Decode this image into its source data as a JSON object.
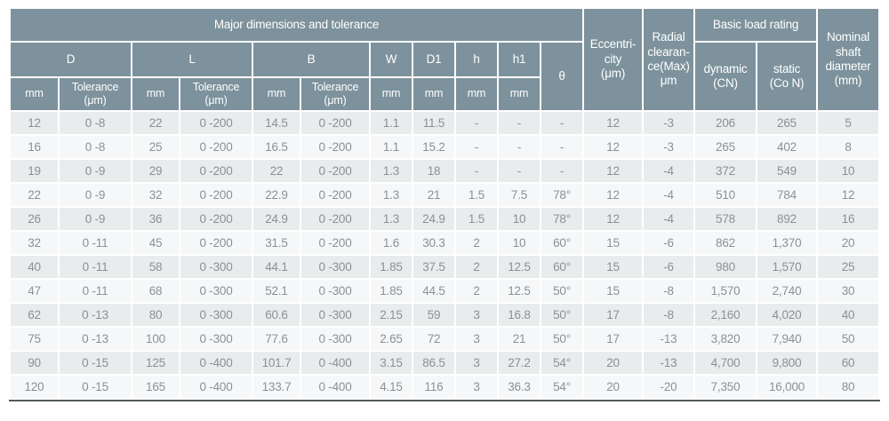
{
  "table": {
    "title_group": "Major  dimensions and tolerance",
    "header": {
      "d_group": "D",
      "l_group": "L",
      "b_group": "B",
      "w_col": "W",
      "d1_col": "D1",
      "h_col": "h",
      "h1_col": "h1",
      "theta_col": "θ",
      "mm_unit": "mm",
      "tolerance_unit": "Tolerance\n(μm)",
      "eccentricity": "Eccentri-\ncity\n(μm)",
      "radial_clearance": "Radial\nclearan-\nce(Max)\nμm",
      "basic_load_rating": "Basic load rating",
      "dynamic_col": "dynamic\n(CN)",
      "static_col": "static\n(Co N)",
      "nominal_shaft": "Nominal\nshaft\ndiameter\n(mm)"
    },
    "columns_order": [
      "D mm",
      "D Tolerance (μm)",
      "L mm",
      "L Tolerance (μm)",
      "B mm",
      "B Tolerance (μm)",
      "W mm",
      "D1 mm",
      "h mm",
      "h1 mm",
      "θ",
      "Eccentricity (μm)",
      "Radial clearance (Max) μm",
      "dynamic (CN)",
      "static (Co N)",
      "Nominal shaft diameter (mm)"
    ],
    "rows": [
      [
        "12",
        "0 -8",
        "22",
        "0 -200",
        "14.5",
        "0 -200",
        "1.1",
        "11.5",
        "-",
        "-",
        "-",
        "12",
        "-3",
        "206",
        "265",
        "5"
      ],
      [
        "16",
        "0 -8",
        "25",
        "0 -200",
        "16.5",
        "0 -200",
        "1.1",
        "15.2",
        "-",
        "-",
        "-",
        "12",
        "-3",
        "265",
        "402",
        "8"
      ],
      [
        "19",
        "0 -9",
        "29",
        "0 -200",
        "22",
        "0 -200",
        "1.3",
        "18",
        "-",
        "-",
        "-",
        "12",
        "-4",
        "372",
        "549",
        "10"
      ],
      [
        "22",
        "0 -9",
        "32",
        "0 -200",
        "22.9",
        "0 -200",
        "1.3",
        "21",
        "1.5",
        "7.5",
        "78°",
        "12",
        "-4",
        "510",
        "784",
        "12"
      ],
      [
        "26",
        "0 -9",
        "36",
        "0 -200",
        "24.9",
        "0 -200",
        "1.3",
        "24.9",
        "1.5",
        "10",
        "78°",
        "12",
        "-4",
        "578",
        "892",
        "16"
      ],
      [
        "32",
        "0 -11",
        "45",
        "0 -200",
        "31.5",
        "0 -200",
        "1.6",
        "30.3",
        "2",
        "10",
        "60°",
        "15",
        "-6",
        "862",
        "1,370",
        "20"
      ],
      [
        "40",
        "0 -11",
        "58",
        "0 -300",
        "44.1",
        "0 -300",
        "1.85",
        "37.5",
        "2",
        "12.5",
        "60°",
        "15",
        "-6",
        "980",
        "1,570",
        "25"
      ],
      [
        "47",
        "0 -11",
        "68",
        "0 -300",
        "52.1",
        "0 -300",
        "1.85",
        "44.5",
        "2",
        "12.5",
        "50°",
        "15",
        "-8",
        "1,570",
        "2,740",
        "30"
      ],
      [
        "62",
        "0 -13",
        "80",
        "0 -300",
        "60.6",
        "0 -300",
        "2.15",
        "59",
        "3",
        "16.8",
        "50°",
        "17",
        "-8",
        "2,160",
        "4,020",
        "40"
      ],
      [
        "75",
        "0 -13",
        "100",
        "0 -300",
        "77.6",
        "0 -300",
        "2.65",
        "72",
        "3",
        "21",
        "50°",
        "17",
        "-13",
        "3,820",
        "7,940",
        "50"
      ],
      [
        "90",
        "0 -15",
        "125",
        "0 -400",
        "101.7",
        "0 -400",
        "3.15",
        "86.5",
        "3",
        "27.2",
        "54°",
        "20",
        "-13",
        "4,700",
        "9,800",
        "60"
      ],
      [
        "120",
        "0 -15",
        "165",
        "0 -400",
        "133.7",
        "0 -400",
        "4.15",
        "116",
        "3",
        "36.3",
        "54°",
        "20",
        "-20",
        "7,350",
        "16,000",
        "80"
      ]
    ]
  },
  "colors": {
    "header_bg": "#7d929c",
    "row_odd": "#e9eced",
    "row_even": "#f6f7f8",
    "data_text": "#8d9093",
    "header_text": "#ffffff",
    "bottom_border": "#53595d",
    "page_bg": "#ffffff"
  }
}
